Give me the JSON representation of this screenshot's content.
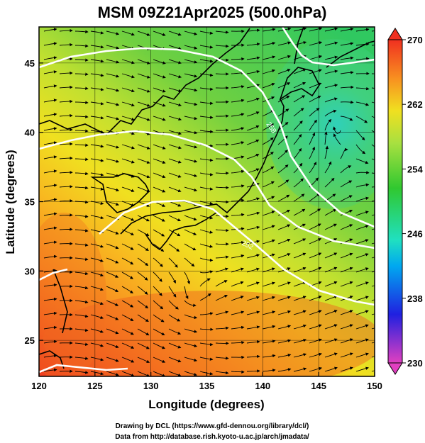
{
  "title": "MSM 09Z21Apr2025 (500.0hPa)",
  "xaxis": {
    "label": "Longitude (degrees)",
    "range": [
      120,
      150
    ],
    "ticks": [
      120,
      125,
      130,
      135,
      140,
      145,
      150
    ]
  },
  "yaxis": {
    "label": "Latitude  (degrees)",
    "range": [
      22.4,
      47.6
    ],
    "ticks": [
      25,
      30,
      35,
      40,
      45
    ]
  },
  "colorbar": {
    "range": [
      230,
      270
    ],
    "ticks": [
      "270",
      "262",
      "254",
      "246",
      "238",
      "230"
    ],
    "colors": [
      "#e040c0",
      "#2020e0",
      "#00a8f0",
      "#20e0c0",
      "#30c830",
      "#a8e040",
      "#f0e020",
      "#f89020",
      "#f03020"
    ]
  },
  "contour_labels": [
    "252",
    "258"
  ],
  "credits": {
    "line1": "Drawing by DCL (https://www.gfd-dennou.org/library/dcl/)",
    "line2": "Data from http://database.rish.kyoto-u.ac.jp/arch/jmadata/"
  },
  "field_colors": {
    "low_center": "#30c898",
    "warm": "#f06020",
    "contour": "#ffffff",
    "coast": "#000000"
  }
}
